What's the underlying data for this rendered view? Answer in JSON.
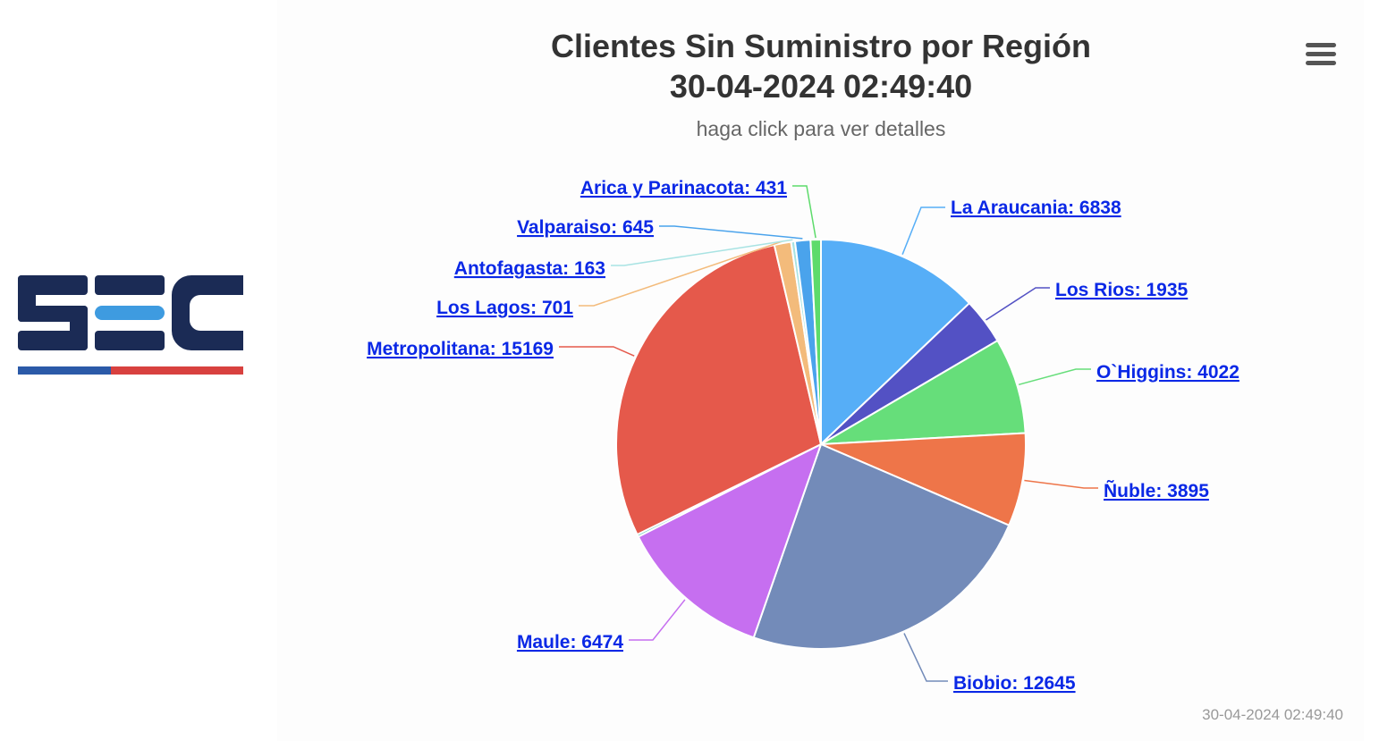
{
  "chart_data": {
    "type": "pie",
    "title": "Clientes Sin Suministro por Región",
    "title_line2": "30-04-2024 02:49:40",
    "subtitle": "haga click para ver detalles",
    "credit": "30-04-2024 02:49:40",
    "slices": [
      {
        "name": "La Araucania",
        "value": 6838,
        "label": "La Araucania: 6838",
        "color": "#56aef7"
      },
      {
        "name": "Los Rios",
        "value": 1935,
        "label": "Los Rios: 1935",
        "color": "#5351c4"
      },
      {
        "name": "O`Higgins",
        "value": 4022,
        "label": "O`Higgins: 4022",
        "color": "#66de7a"
      },
      {
        "name": "Ñuble",
        "value": 3895,
        "label": "Ñuble: 3895",
        "color": "#ee7549"
      },
      {
        "name": "Biobio",
        "value": 12645,
        "label": "Biobio: 12645",
        "color": "#738bb9"
      },
      {
        "name": "Maule",
        "value": 6474,
        "label": "Maule: 6474",
        "color": "#c66ff0"
      },
      {
        "name": "",
        "value": 100,
        "label": "",
        "color": "#4bc0b0"
      },
      {
        "name": "Metropolitana",
        "value": 15169,
        "label": "Metropolitana: 15169",
        "color": "#e5594b"
      },
      {
        "name": "Los Lagos",
        "value": 701,
        "label": "Los Lagos: 701",
        "color": "#f3bb7b"
      },
      {
        "name": "Antofagasta",
        "value": 163,
        "label": "Antofagasta: 163",
        "color": "#a8e3e3"
      },
      {
        "name": "Valparaiso",
        "value": 645,
        "label": "Valparaiso: 645",
        "color": "#4aa3ec"
      },
      {
        "name": "Arica y Parinacota",
        "value": 431,
        "label": "Arica y Parinacota: 431",
        "color": "#5ddb6b"
      }
    ]
  },
  "logo": {
    "text": "SEC",
    "colors": {
      "navy": "#1b2b55",
      "accent": "#3e9be0",
      "blue": "#2b5aa8",
      "red": "#d8413f"
    }
  },
  "menu_icon": "hamburger-menu-icon"
}
